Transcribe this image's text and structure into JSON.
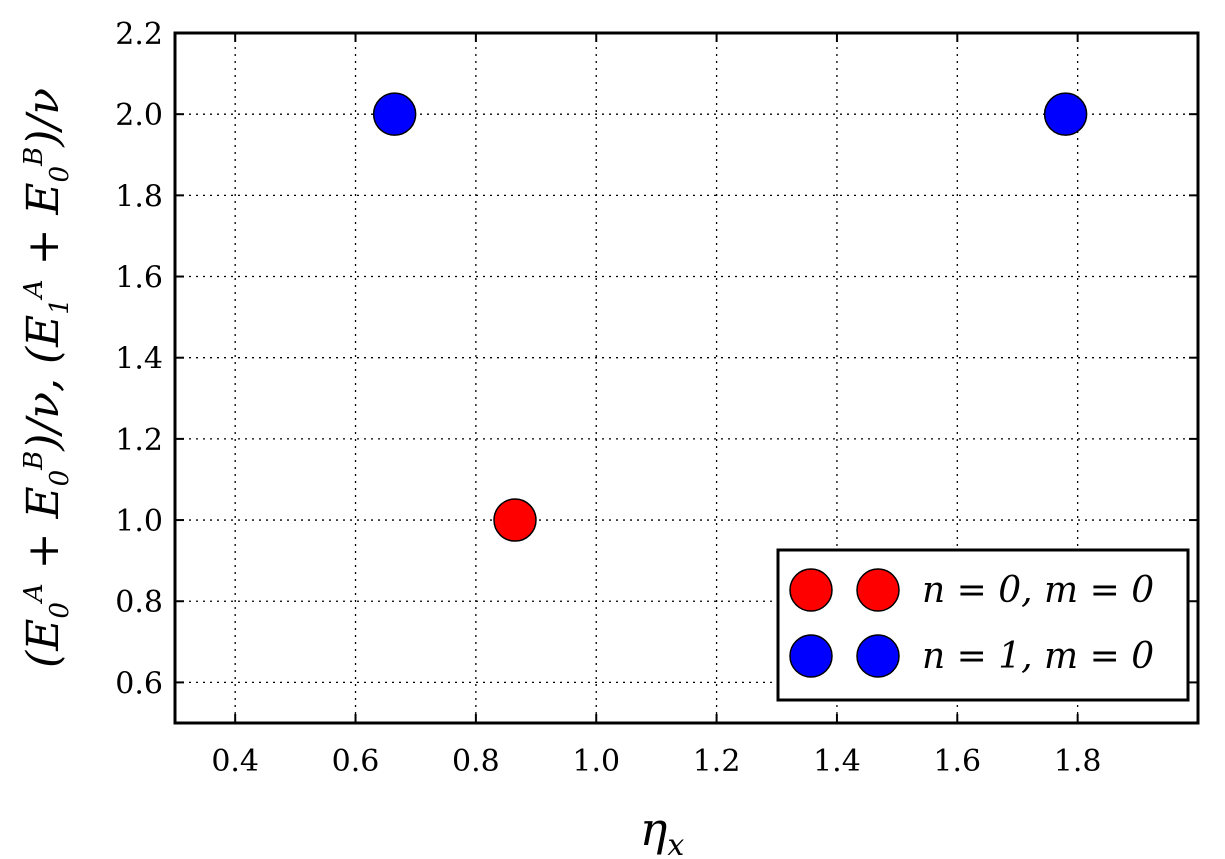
{
  "chart_data": {
    "type": "scatter",
    "xlabel": "ηx",
    "ylabel": "(E0A + E0B)/ν, (E1A + E0B)/ν",
    "xlim": [
      0.3,
      2.0
    ],
    "ylim": [
      0.5,
      2.2
    ],
    "x_ticks": [
      "0.4",
      "0.6",
      "0.8",
      "1.0",
      "1.2",
      "1.4",
      "1.6",
      "1.8"
    ],
    "y_ticks": [
      "0.6",
      "0.8",
      "1.0",
      "1.2",
      "1.4",
      "1.6",
      "1.8",
      "2.0",
      "2.2"
    ],
    "grid": true,
    "legend_position": "lower-right",
    "series": [
      {
        "name": "n = 0, m = 0",
        "color": "#ff0000",
        "points": [
          {
            "x": 0.865,
            "y": 1.0
          }
        ]
      },
      {
        "name": "n = 1, m = 0",
        "color": "#0000ff",
        "points": [
          {
            "x": 0.665,
            "y": 2.0
          },
          {
            "x": 1.78,
            "y": 2.0
          }
        ]
      }
    ]
  }
}
